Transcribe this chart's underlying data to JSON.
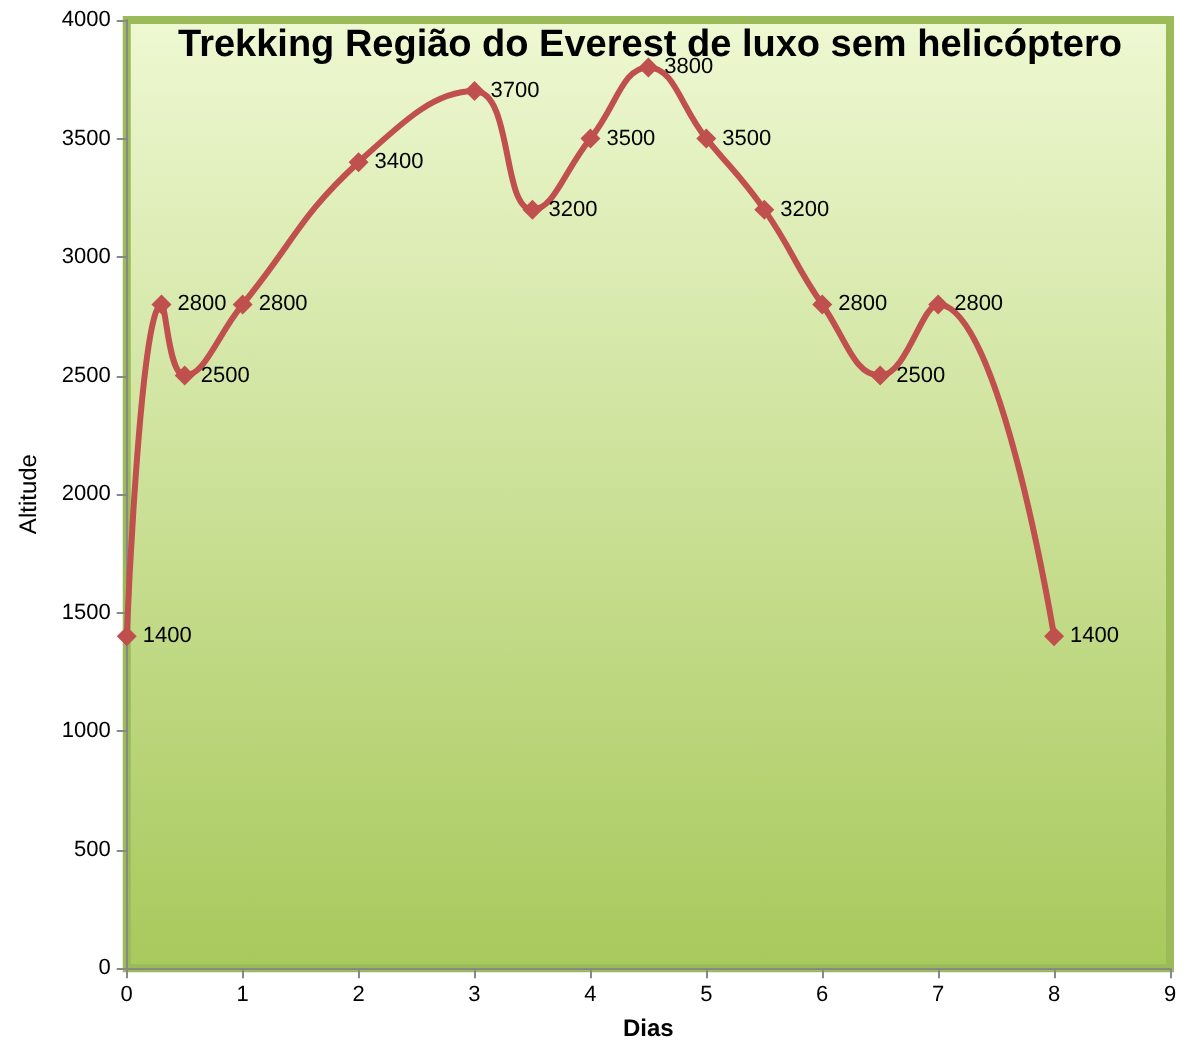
{
  "chart_data": {
    "type": "line",
    "title": "Trekking Região do Everest de luxo sem helicóptero",
    "xlabel": "Dias",
    "ylabel": "Altitude",
    "x": [
      0,
      0.3,
      0.5,
      1,
      2,
      3,
      3.5,
      4,
      4.5,
      5,
      5.5,
      6,
      6.5,
      7,
      8
    ],
    "series": [
      {
        "color": "#c0504d",
        "values": [
          1400,
          2800,
          2500,
          2800,
          3400,
          3700,
          3200,
          3500,
          3800,
          3500,
          3200,
          2800,
          2500,
          2800,
          1400
        ]
      }
    ],
    "xlim": [
      0,
      9
    ],
    "xticks": [
      0,
      1,
      2,
      3,
      4,
      5,
      6,
      7,
      8,
      9
    ],
    "ylim": [
      0,
      4000
    ],
    "yticks": [
      0,
      500,
      1000,
      1500,
      2000,
      2500,
      3000,
      3500,
      4000
    ],
    "grid": false,
    "marker": "diamond",
    "line_style": "solid",
    "data_labels": true
  }
}
